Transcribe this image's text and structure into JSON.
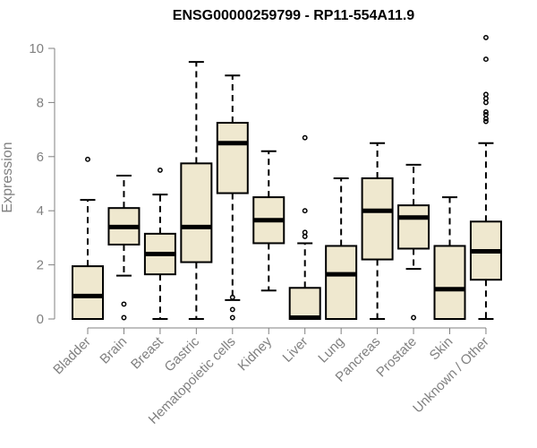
{
  "chart_data": {
    "type": "boxplot",
    "title": "ENSG00000259799 - RP11-554A11.9",
    "xlabel": "",
    "ylabel": "Expression",
    "ylim": [
      0,
      10.4
    ],
    "yticks": [
      0,
      2,
      4,
      6,
      8,
      10
    ],
    "grid": false,
    "colors": {
      "box_fill": "#efe8cf",
      "stroke": "#000000",
      "axis": "#808080",
      "label": "#808080"
    },
    "categories": [
      "Bladder",
      "Brain",
      "Breast",
      "Gastric",
      "Hematopoietic cells",
      "Kidney",
      "Liver",
      "Lung",
      "Pancreas",
      "Prostate",
      "Skin",
      "Unknown / Other"
    ],
    "boxes": [
      {
        "label": "Bladder",
        "whisker_low": 0,
        "q1": 0,
        "median": 0.85,
        "q3": 1.95,
        "whisker_high": 4.4,
        "outliers": [
          5.9
        ]
      },
      {
        "label": "Brain",
        "whisker_low": 1.6,
        "q1": 2.75,
        "median": 3.4,
        "q3": 4.1,
        "whisker_high": 5.3,
        "outliers": [
          0.55,
          0.05
        ]
      },
      {
        "label": "Breast",
        "whisker_low": 0,
        "q1": 1.65,
        "median": 2.4,
        "q3": 3.15,
        "whisker_high": 4.6,
        "outliers": [
          5.5
        ]
      },
      {
        "label": "Gastric",
        "whisker_low": 0,
        "q1": 2.1,
        "median": 3.4,
        "q3": 5.75,
        "whisker_high": 9.5,
        "outliers": []
      },
      {
        "label": "Hematopoietic cells",
        "whisker_low": 0.7,
        "q1": 4.65,
        "median": 6.5,
        "q3": 7.25,
        "whisker_high": 9.0,
        "outliers": [
          0.8,
          0.35,
          0.05
        ]
      },
      {
        "label": "Kidney",
        "whisker_low": 1.05,
        "q1": 2.8,
        "median": 3.65,
        "q3": 4.5,
        "whisker_high": 6.2,
        "outliers": []
      },
      {
        "label": "Liver",
        "whisker_low": 0,
        "q1": 0,
        "median": 0.05,
        "q3": 1.15,
        "whisker_high": 2.8,
        "outliers": [
          6.7,
          4.0,
          3.2,
          3.05
        ]
      },
      {
        "label": "Lung",
        "whisker_low": 0,
        "q1": 0,
        "median": 1.65,
        "q3": 2.7,
        "whisker_high": 5.2,
        "outliers": []
      },
      {
        "label": "Pancreas",
        "whisker_low": 0,
        "q1": 2.2,
        "median": 4.0,
        "q3": 5.2,
        "whisker_high": 6.5,
        "outliers": []
      },
      {
        "label": "Prostate",
        "whisker_low": 1.85,
        "q1": 2.6,
        "median": 3.75,
        "q3": 4.2,
        "whisker_high": 5.7,
        "outliers": [
          0.05
        ]
      },
      {
        "label": "Skin",
        "whisker_low": 0,
        "q1": 0,
        "median": 1.1,
        "q3": 2.7,
        "whisker_high": 4.5,
        "outliers": []
      },
      {
        "label": "Unknown / Other",
        "whisker_low": 0,
        "q1": 1.45,
        "median": 2.5,
        "q3": 3.6,
        "whisker_high": 6.5,
        "outliers": [
          10.4,
          9.6,
          8.3,
          8.15,
          8.0,
          7.65,
          7.55,
          7.4,
          7.3
        ]
      }
    ]
  }
}
